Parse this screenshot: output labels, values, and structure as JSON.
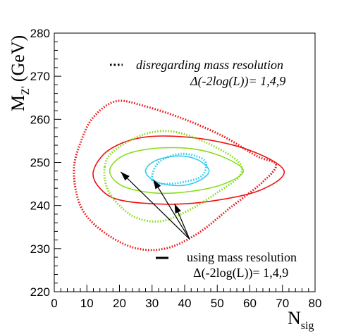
{
  "chart_data": {
    "type": "contour",
    "xlabel": "N",
    "xlabel_sub": "sig",
    "ylabel": "M",
    "ylabel_sub": "Z'",
    "ylabel_unit": "(GeV)",
    "xlim": [
      0,
      80
    ],
    "ylim": [
      220,
      280
    ],
    "x_ticks": [
      0,
      10,
      20,
      30,
      40,
      50,
      60,
      70,
      80
    ],
    "y_ticks": [
      220,
      230,
      240,
      250,
      260,
      270,
      280
    ],
    "legend_dotted_label": "disregarding mass resolution",
    "legend_dotted_sub": "Δ(-2log(L))= 1,4,9",
    "legend_solid_label": "using mass resolution",
    "legend_solid_sub": "Δ(-2log(L))= 1,4,9",
    "colors": {
      "delta1": "#33ccee",
      "delta4": "#88dd22",
      "delta9": "#ee1111"
    },
    "series": [
      {
        "style": "solid",
        "level": 1,
        "color": "#33ccee",
        "points": [
          [
            28,
            248
          ],
          [
            31,
            250.4
          ],
          [
            38,
            251.5
          ],
          [
            44,
            250.6
          ],
          [
            47.5,
            248
          ],
          [
            44,
            245.6
          ],
          [
            38,
            244.6
          ],
          [
            31,
            245.6
          ]
        ]
      },
      {
        "style": "solid",
        "level": 4,
        "color": "#88dd22",
        "points": [
          [
            17,
            248
          ],
          [
            21,
            251.5
          ],
          [
            30,
            253.2
          ],
          [
            42,
            253.2
          ],
          [
            52,
            251.2
          ],
          [
            58,
            248
          ],
          [
            52,
            245
          ],
          [
            42,
            243.3
          ],
          [
            31,
            242.9
          ],
          [
            21,
            244.5
          ]
        ]
      },
      {
        "style": "solid",
        "level": 9,
        "color": "#ee1111",
        "points": [
          [
            12,
            248
          ],
          [
            17,
            253
          ],
          [
            28,
            255.9
          ],
          [
            44,
            255.6
          ],
          [
            60,
            252.8
          ],
          [
            70.5,
            248
          ],
          [
            63,
            243.5
          ],
          [
            48,
            241
          ],
          [
            34,
            240.3
          ],
          [
            20,
            241.3
          ],
          [
            14,
            244
          ]
        ]
      },
      {
        "style": "dotted",
        "level": 1,
        "color": "#33ccee",
        "points": [
          [
            30,
            246
          ],
          [
            32,
            250
          ],
          [
            39,
            252
          ],
          [
            46,
            250.5
          ],
          [
            45.5,
            247
          ],
          [
            40,
            245.5
          ],
          [
            33,
            245
          ]
        ]
      },
      {
        "style": "dotted",
        "level": 4,
        "color": "#88dd22",
        "points": [
          [
            15.5,
            249
          ],
          [
            18,
            252.5
          ],
          [
            27,
            256.4
          ],
          [
            36,
            257.2
          ],
          [
            46,
            254.8
          ],
          [
            56,
            250.5
          ],
          [
            57,
            247
          ],
          [
            50,
            243
          ],
          [
            42,
            239.2
          ],
          [
            33,
            236.4
          ],
          [
            25,
            237.2
          ],
          [
            19,
            240.8
          ],
          [
            16,
            244.5
          ]
        ]
      },
      {
        "style": "dotted",
        "level": 9,
        "color": "#ee1111",
        "points": [
          [
            6,
            248
          ],
          [
            8,
            254.5
          ],
          [
            12,
            260.5
          ],
          [
            19,
            264.2
          ],
          [
            28,
            263
          ],
          [
            40,
            260
          ],
          [
            52,
            256
          ],
          [
            62,
            251.5
          ],
          [
            68,
            249.5
          ],
          [
            64,
            245.5
          ],
          [
            54,
            239.5
          ],
          [
            44,
            233.5
          ],
          [
            34,
            230
          ],
          [
            24,
            230.3
          ],
          [
            14,
            234.5
          ],
          [
            8,
            240
          ]
        ]
      }
    ],
    "arrows": [
      {
        "from": [
          41.5,
          232.2
        ],
        "to": [
          20.4,
          247.8
        ]
      },
      {
        "from": [
          41.5,
          232.2
        ],
        "to": [
          30.4,
          246.0
        ]
      },
      {
        "from": [
          41.5,
          232.2
        ],
        "to": [
          36.9,
          240.4
        ]
      }
    ]
  }
}
